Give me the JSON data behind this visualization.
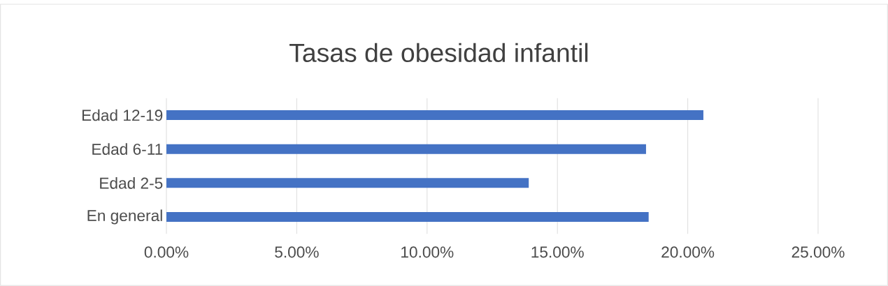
{
  "chart_data": {
    "type": "bar",
    "orientation": "horizontal",
    "title": "Tasas de obesidad infantil",
    "categories": [
      "Edad 12-19",
      "Edad 6-11",
      "Edad 2-5",
      "En general"
    ],
    "values": [
      20.6,
      18.4,
      13.9,
      18.5
    ],
    "color": "#4472c4",
    "xlim": [
      0,
      25
    ],
    "xticks": [
      {
        "value": 0,
        "label": "0.00%"
      },
      {
        "value": 5,
        "label": "5.00%"
      },
      {
        "value": 10,
        "label": "10.00%"
      },
      {
        "value": 15,
        "label": "15.00%"
      },
      {
        "value": 20,
        "label": "20.00%"
      },
      {
        "value": 25,
        "label": "25.00%"
      }
    ],
    "grid": "x"
  }
}
